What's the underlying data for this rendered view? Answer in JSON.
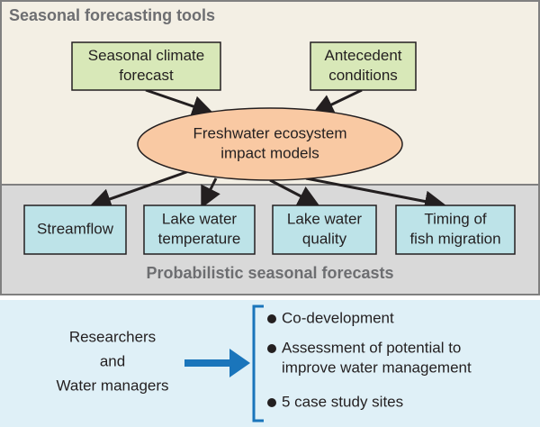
{
  "top_panel": {
    "title": "Seasonal forecasting tools",
    "inputs": [
      {
        "lines": [
          "Seasonal climate",
          "forecast"
        ]
      },
      {
        "lines": [
          "Antecedent",
          "conditions"
        ]
      }
    ],
    "model": {
      "lines": [
        "Freshwater ecosystem",
        "impact models"
      ]
    }
  },
  "middle_panel": {
    "title": "Probabilistic seasonal forecasts",
    "outputs": [
      {
        "lines": [
          "Streamflow"
        ]
      },
      {
        "lines": [
          "Lake water",
          "temperature"
        ]
      },
      {
        "lines": [
          "Lake water",
          "quality"
        ]
      },
      {
        "lines": [
          "Timing of",
          "fish migration"
        ]
      }
    ]
  },
  "bottom_panel": {
    "audience": [
      "Researchers",
      "and",
      "Water managers"
    ],
    "bullets": [
      {
        "lines": [
          "Co-development"
        ]
      },
      {
        "lines": [
          "Assessment of potential to",
          "improve water management"
        ]
      },
      {
        "lines": [
          "5 case study sites"
        ]
      }
    ]
  }
}
